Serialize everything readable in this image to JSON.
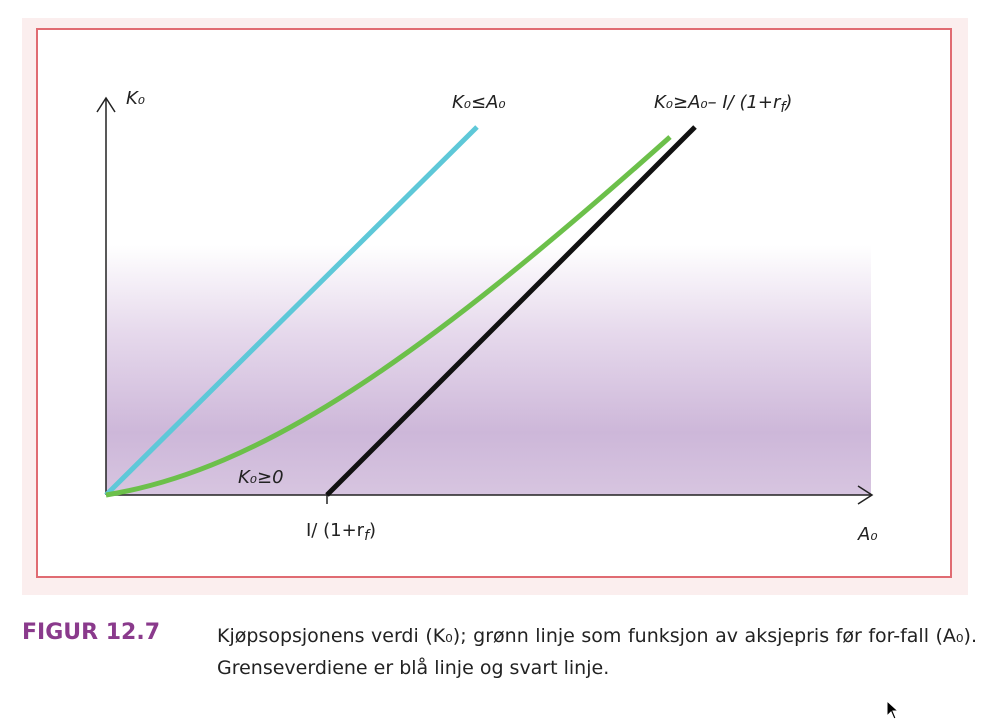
{
  "caption": {
    "label": "FIGUR 12.7",
    "text": "Kjøpsopsjonens verdi (K₀); grønn linje som funksjon av aksjepris før for-fall (A₀). Grenseverdiene er blå linje og svart linje."
  },
  "chart_data": {
    "type": "line",
    "xlabel": "A₀",
    "ylabel": "K₀",
    "x_tick_label": "I/ (1+r_f)",
    "annotations": {
      "upper_bound": "K₀≤A₀",
      "lower_bound": "K₀≥A₀– I/ (1+r_f)",
      "zero_bound": "K₀≥0"
    },
    "series": [
      {
        "name": "K₀≤A₀",
        "color": "#5ec8d8",
        "kind": "upper-bound",
        "x": [
          0,
          1
        ],
        "y": [
          0,
          1
        ]
      },
      {
        "name": "K₀",
        "color": "#6cc04a",
        "kind": "option-value"
      },
      {
        "name": "K₀≥A₀– I/ (1+r_f)",
        "color": "#111111",
        "kind": "lower-bound"
      }
    ],
    "grid": false,
    "background_gradient": [
      "#ffffff",
      "#c9b2d6"
    ]
  }
}
